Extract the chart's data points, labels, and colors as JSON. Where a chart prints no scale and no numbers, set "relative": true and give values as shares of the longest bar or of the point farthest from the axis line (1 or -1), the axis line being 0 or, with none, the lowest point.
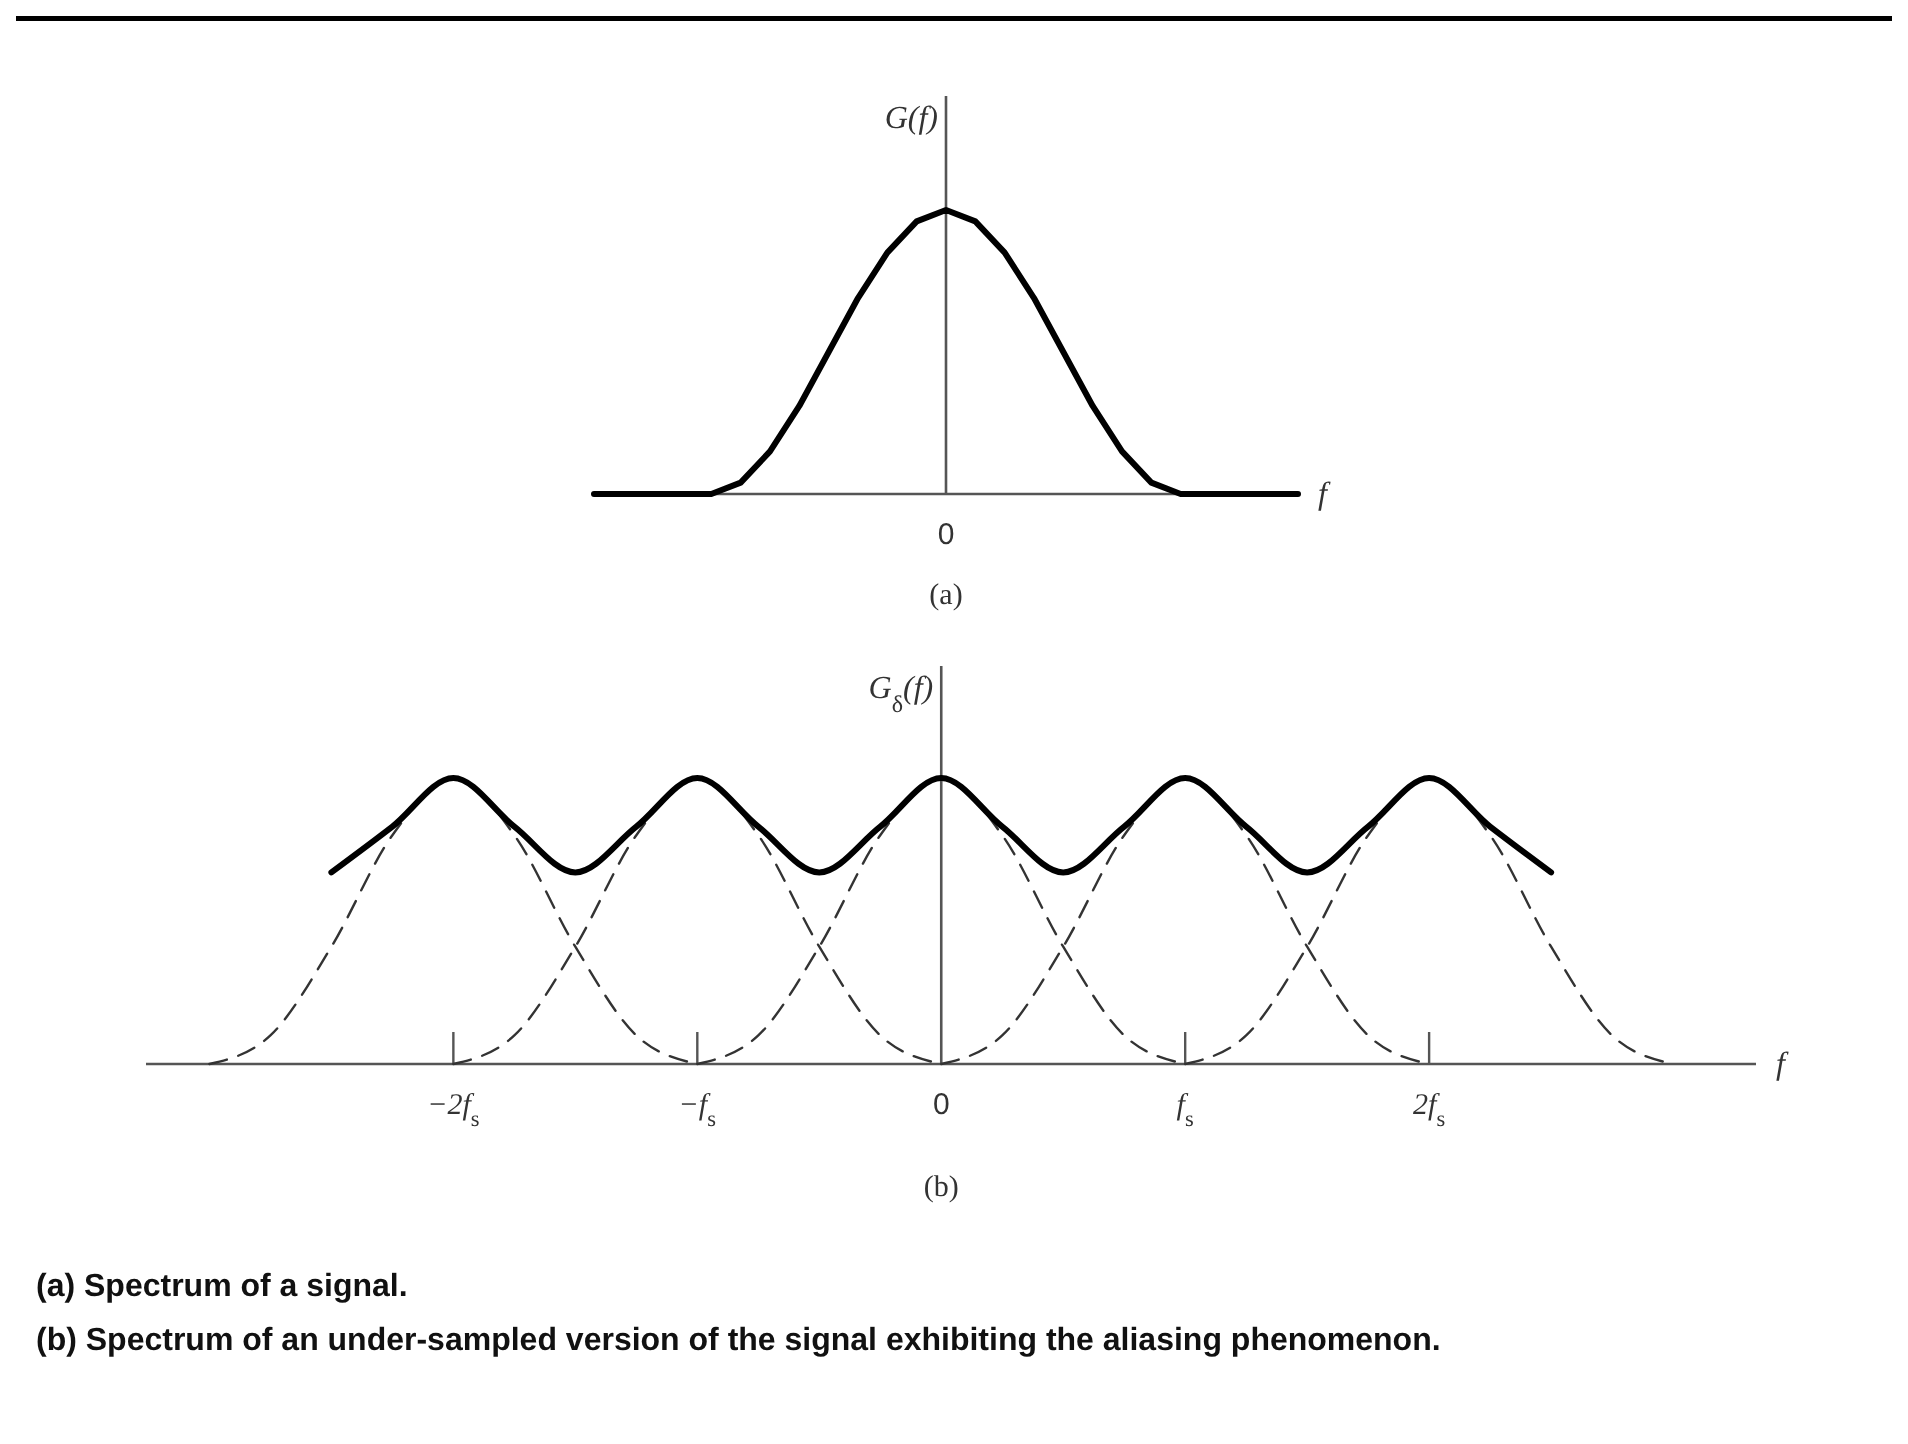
{
  "chart_data": [
    {
      "type": "line",
      "relative": true,
      "xlabel": "f",
      "ylabel": "G(f)",
      "categories": [
        null,
        null,
        null,
        null,
        null,
        null,
        null,
        null,
        null,
        null,
        null,
        null,
        null,
        null,
        null,
        null,
        null,
        null,
        null,
        null,
        null,
        null,
        null,
        null,
        null
      ],
      "series": [
        {
          "color": "#000000",
          "line_style": "solid",
          "values": [
            0,
            0,
            0,
            0,
            0,
            0.04,
            0.15,
            0.31,
            0.5,
            0.69,
            0.85,
            0.96,
            1,
            0.96,
            0.85,
            0.69,
            0.5,
            0.31,
            0.15,
            0.04,
            0,
            0,
            0,
            0,
            0
          ]
        }
      ],
      "annotations": [
        "(a)",
        "(a)  Spectrum of a signal.",
        "0"
      ]
    },
    {
      "type": "line",
      "relative": true,
      "xlabel": "f",
      "ylabel": "G$_{δ}$(f)",
      "xlim": [
        -3.26,
        3.34
      ],
      "xticks": [
        {
          "value": -2,
          "label": "−2f$_{s}$"
        },
        {
          "value": -1,
          "label": "−f$_{s}$"
        },
        0,
        {
          "value": 1,
          "label": "f$_{s}$"
        },
        {
          "value": 2,
          "label": "2f$_{s}$"
        }
      ],
      "series": [
        {
          "color": "#333333",
          "line_style": "dashed",
          "x": [
            -3,
            -2.75,
            -2.5,
            -2.25,
            -2,
            -1.75,
            -1.5,
            -1.25,
            -1
          ],
          "values": [
            0,
            0.1,
            0.41,
            0.8,
            1,
            0.8,
            0.41,
            0.1,
            0
          ]
        },
        {
          "color": "#333333",
          "line_style": "dashed",
          "x": [
            -2,
            -1.75,
            -1.5,
            -1.25,
            -1,
            -0.75,
            -0.5,
            -0.25,
            0
          ],
          "values": [
            0,
            0.1,
            0.41,
            0.8,
            1,
            0.8,
            0.41,
            0.1,
            0
          ]
        },
        {
          "color": "#333333",
          "line_style": "dashed",
          "x": [
            -1,
            -0.75,
            -0.5,
            -0.25,
            0,
            0.25,
            0.5,
            0.75,
            1
          ],
          "values": [
            0,
            0.1,
            0.41,
            0.8,
            1,
            0.8,
            0.41,
            0.1,
            0
          ]
        },
        {
          "color": "#333333",
          "line_style": "dashed",
          "x": [
            0,
            0.25,
            0.5,
            0.75,
            1,
            1.25,
            1.5,
            1.75,
            2
          ],
          "values": [
            0,
            0.1,
            0.41,
            0.8,
            1,
            0.8,
            0.41,
            0.1,
            0
          ]
        },
        {
          "color": "#333333",
          "line_style": "dashed",
          "x": [
            1,
            1.25,
            1.5,
            1.75,
            2,
            2.25,
            2.5,
            2.75,
            3
          ],
          "values": [
            0,
            0.1,
            0.41,
            0.8,
            1,
            0.8,
            0.41,
            0.1,
            0
          ]
        },
        {
          "color": "#000000",
          "line_style": "solid",
          "x": [
            -2.5,
            -2.25,
            -2,
            -1.75,
            -1.5,
            -1.25,
            -1,
            -0.75,
            -0.5,
            -0.25,
            0,
            0.25,
            0.5,
            0.75,
            1,
            1.25,
            1.5,
            1.75,
            2,
            2.25,
            2.5
          ],
          "values": [
            0.67,
            0.83,
            1,
            0.83,
            0.67,
            0.83,
            1,
            0.83,
            0.67,
            0.83,
            1,
            0.83,
            0.67,
            0.83,
            1,
            0.83,
            0.67,
            0.83,
            1,
            0.83,
            0.67
          ]
        }
      ],
      "annotations": [
        "(b)",
        "(b) Spectrum of an under-sampled version of the signal exhibiting the aliasing phenomenon."
      ]
    }
  ]
}
